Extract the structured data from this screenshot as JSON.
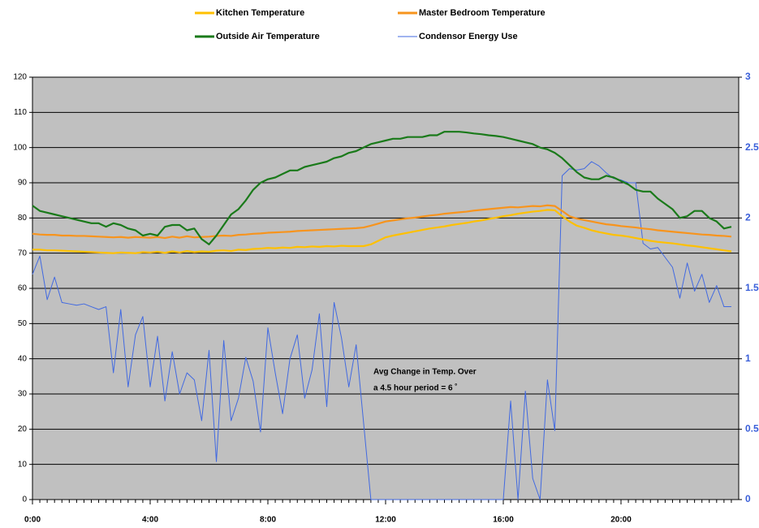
{
  "chart_data": {
    "type": "line",
    "annotation": [
      "Avg Change in Temp. Over",
      "a 4.5 hour period = 6 ˚"
    ],
    "legend": "top",
    "grid": true,
    "x": [
      0,
      0.25,
      0.5,
      0.75,
      1,
      1.25,
      1.5,
      1.75,
      2,
      2.25,
      2.5,
      2.75,
      3,
      3.25,
      3.5,
      3.75,
      4,
      4.25,
      4.5,
      4.75,
      5,
      5.25,
      5.5,
      5.75,
      6,
      6.25,
      6.5,
      6.75,
      7,
      7.25,
      7.5,
      7.75,
      8,
      8.25,
      8.5,
      8.75,
      9,
      9.25,
      9.5,
      9.75,
      10,
      10.25,
      10.5,
      10.75,
      11,
      11.25,
      11.5,
      11.75,
      12,
      12.25,
      12.5,
      12.75,
      13,
      13.25,
      13.5,
      13.75,
      14,
      14.25,
      14.5,
      14.75,
      15,
      15.25,
      15.5,
      15.75,
      16,
      16.25,
      16.5,
      16.75,
      17,
      17.25,
      17.5,
      17.75,
      18,
      18.25,
      18.5,
      18.75,
      19,
      19.25,
      19.5,
      19.75,
      20,
      20.25,
      20.5,
      20.75,
      21,
      21.25,
      21.5,
      21.75,
      22,
      22.25,
      22.5,
      22.75,
      23,
      23.25,
      23.5,
      23.75
    ],
    "xlim": [
      0,
      24
    ],
    "xticks": [
      {
        "value": 0,
        "label": "0:00"
      },
      {
        "value": 4,
        "label": "4:00"
      },
      {
        "value": 8,
        "label": "8:00"
      },
      {
        "value": 12,
        "label": "12:00"
      },
      {
        "value": 16,
        "label": "16:00"
      },
      {
        "value": 20,
        "label": "20:00"
      }
    ],
    "ylim": [
      0,
      120
    ],
    "yticks": [
      0,
      10,
      20,
      30,
      40,
      50,
      60,
      70,
      80,
      90,
      100,
      110,
      120
    ],
    "y2lim": [
      0,
      3
    ],
    "y2ticks": [
      0,
      0.5,
      1,
      1.5,
      2,
      2.5,
      3
    ],
    "series": [
      {
        "name": "Kitchen Temperature",
        "color": "#ffc000",
        "values": [
          71,
          71,
          70.8,
          70.8,
          70.7,
          70.6,
          70.5,
          70.4,
          70.3,
          70.2,
          70.1,
          70,
          70.2,
          70.1,
          70,
          70.3,
          70.2,
          70.4,
          70.1,
          70.5,
          70.2,
          70.6,
          70.3,
          70.5,
          70.4,
          70.7,
          70.8,
          70.6,
          71,
          70.9,
          71.2,
          71.3,
          71.5,
          71.4,
          71.6,
          71.5,
          71.8,
          71.7,
          71.9,
          71.8,
          72,
          71.9,
          72.1,
          72,
          72,
          72,
          72.5,
          73.5,
          74.5,
          75,
          75.4,
          75.8,
          76.2,
          76.6,
          77,
          77.3,
          77.6,
          78,
          78.3,
          78.6,
          79,
          79.3,
          79.7,
          80.1,
          80.5,
          80.8,
          81.2,
          81.5,
          81.8,
          82,
          82.3,
          82.2,
          80.5,
          79,
          77.8,
          77.2,
          76.5,
          76,
          75.6,
          75.2,
          75,
          74.7,
          74.3,
          73.9,
          73.5,
          73.2,
          73,
          72.8,
          72.5,
          72.2,
          72,
          71.7,
          71.4,
          71.1,
          70.8,
          70.5
        ]
      },
      {
        "name": "Master Bedroom Temperature",
        "color": "#f7941d",
        "values": [
          75.5,
          75.3,
          75.2,
          75.2,
          75,
          75,
          74.9,
          74.9,
          74.8,
          74.7,
          74.6,
          74.5,
          74.6,
          74.4,
          74.6,
          74.5,
          74.4,
          74.6,
          74.3,
          74.7,
          74.4,
          74.8,
          74.5,
          74.6,
          74.7,
          74.9,
          75,
          74.9,
          75.2,
          75.3,
          75.5,
          75.6,
          75.8,
          75.9,
          76,
          76.1,
          76.3,
          76.4,
          76.5,
          76.6,
          76.7,
          76.8,
          76.9,
          77,
          77.1,
          77.3,
          77.8,
          78.4,
          79,
          79.3,
          79.6,
          79.9,
          80.1,
          80.4,
          80.7,
          80.9,
          81.2,
          81.4,
          81.6,
          81.8,
          82.1,
          82.3,
          82.5,
          82.7,
          82.9,
          83.1,
          83,
          83.2,
          83.4,
          83.3,
          83.6,
          83.4,
          82,
          80.5,
          79.8,
          79.4,
          79,
          78.6,
          78.2,
          78,
          77.7,
          77.5,
          77.3,
          77,
          76.8,
          76.5,
          76.3,
          76.1,
          75.9,
          75.7,
          75.5,
          75.3,
          75.2,
          75,
          74.9,
          74.7
        ]
      },
      {
        "name": "Outside Air Temperature",
        "color": "#1a7a1a",
        "values": [
          83.5,
          82,
          81.5,
          81,
          80.5,
          80,
          79.5,
          79,
          78.5,
          78.5,
          77.5,
          78.5,
          78,
          77,
          76.5,
          75,
          75.5,
          75,
          77.5,
          78,
          78,
          76.5,
          77,
          74,
          72.5,
          75,
          78,
          81,
          82.5,
          85,
          88,
          90,
          91,
          91.5,
          92.5,
          93.5,
          93.5,
          94.5,
          95,
          95.5,
          96,
          97,
          97.5,
          98.5,
          99,
          100,
          101,
          101.5,
          102,
          102.5,
          102.5,
          103,
          103,
          103,
          103.5,
          103.5,
          104.5,
          104.5,
          104.5,
          104.3,
          104,
          103.8,
          103.5,
          103.3,
          103,
          102.5,
          102,
          101.5,
          101,
          100,
          99.5,
          98.5,
          97,
          95,
          93,
          91.5,
          91,
          91,
          92,
          91.5,
          90.5,
          89.5,
          88,
          87.5,
          87.5,
          85.5,
          84,
          82.5,
          80,
          80.5,
          82,
          82,
          80,
          79,
          77,
          77.5
        ]
      },
      {
        "name": "Condensor Energy Use",
        "color": "#4169e1",
        "axis": "y2",
        "values": [
          1.6,
          1.73,
          1.42,
          1.58,
          1.4,
          1.39,
          1.38,
          1.39,
          1.37,
          1.35,
          1.37,
          0.9,
          1.35,
          0.8,
          1.17,
          1.3,
          0.8,
          1.16,
          0.7,
          1.05,
          0.75,
          0.9,
          0.85,
          0.56,
          1.06,
          0.27,
          1.13,
          0.56,
          0.72,
          1.01,
          0.84,
          0.48,
          1.22,
          0.9,
          0.61,
          1,
          1.17,
          0.72,
          0.92,
          1.32,
          0.66,
          1.4,
          1.15,
          0.8,
          1.1,
          0.55,
          0,
          0,
          0,
          0,
          0,
          0,
          0,
          0,
          0,
          0,
          0,
          0,
          0,
          0,
          0,
          0,
          0,
          0,
          0,
          0.7,
          0,
          0.77,
          0.15,
          0,
          0.85,
          0.49,
          2.3,
          2.35,
          2.34,
          2.35,
          2.4,
          2.37,
          2.32,
          2.28,
          2.27,
          2.25,
          2.25,
          1.82,
          1.78,
          1.79,
          1.72,
          1.65,
          1.43,
          1.68,
          1.48,
          1.6,
          1.4,
          1.52,
          1.37,
          1.37
        ]
      }
    ]
  }
}
